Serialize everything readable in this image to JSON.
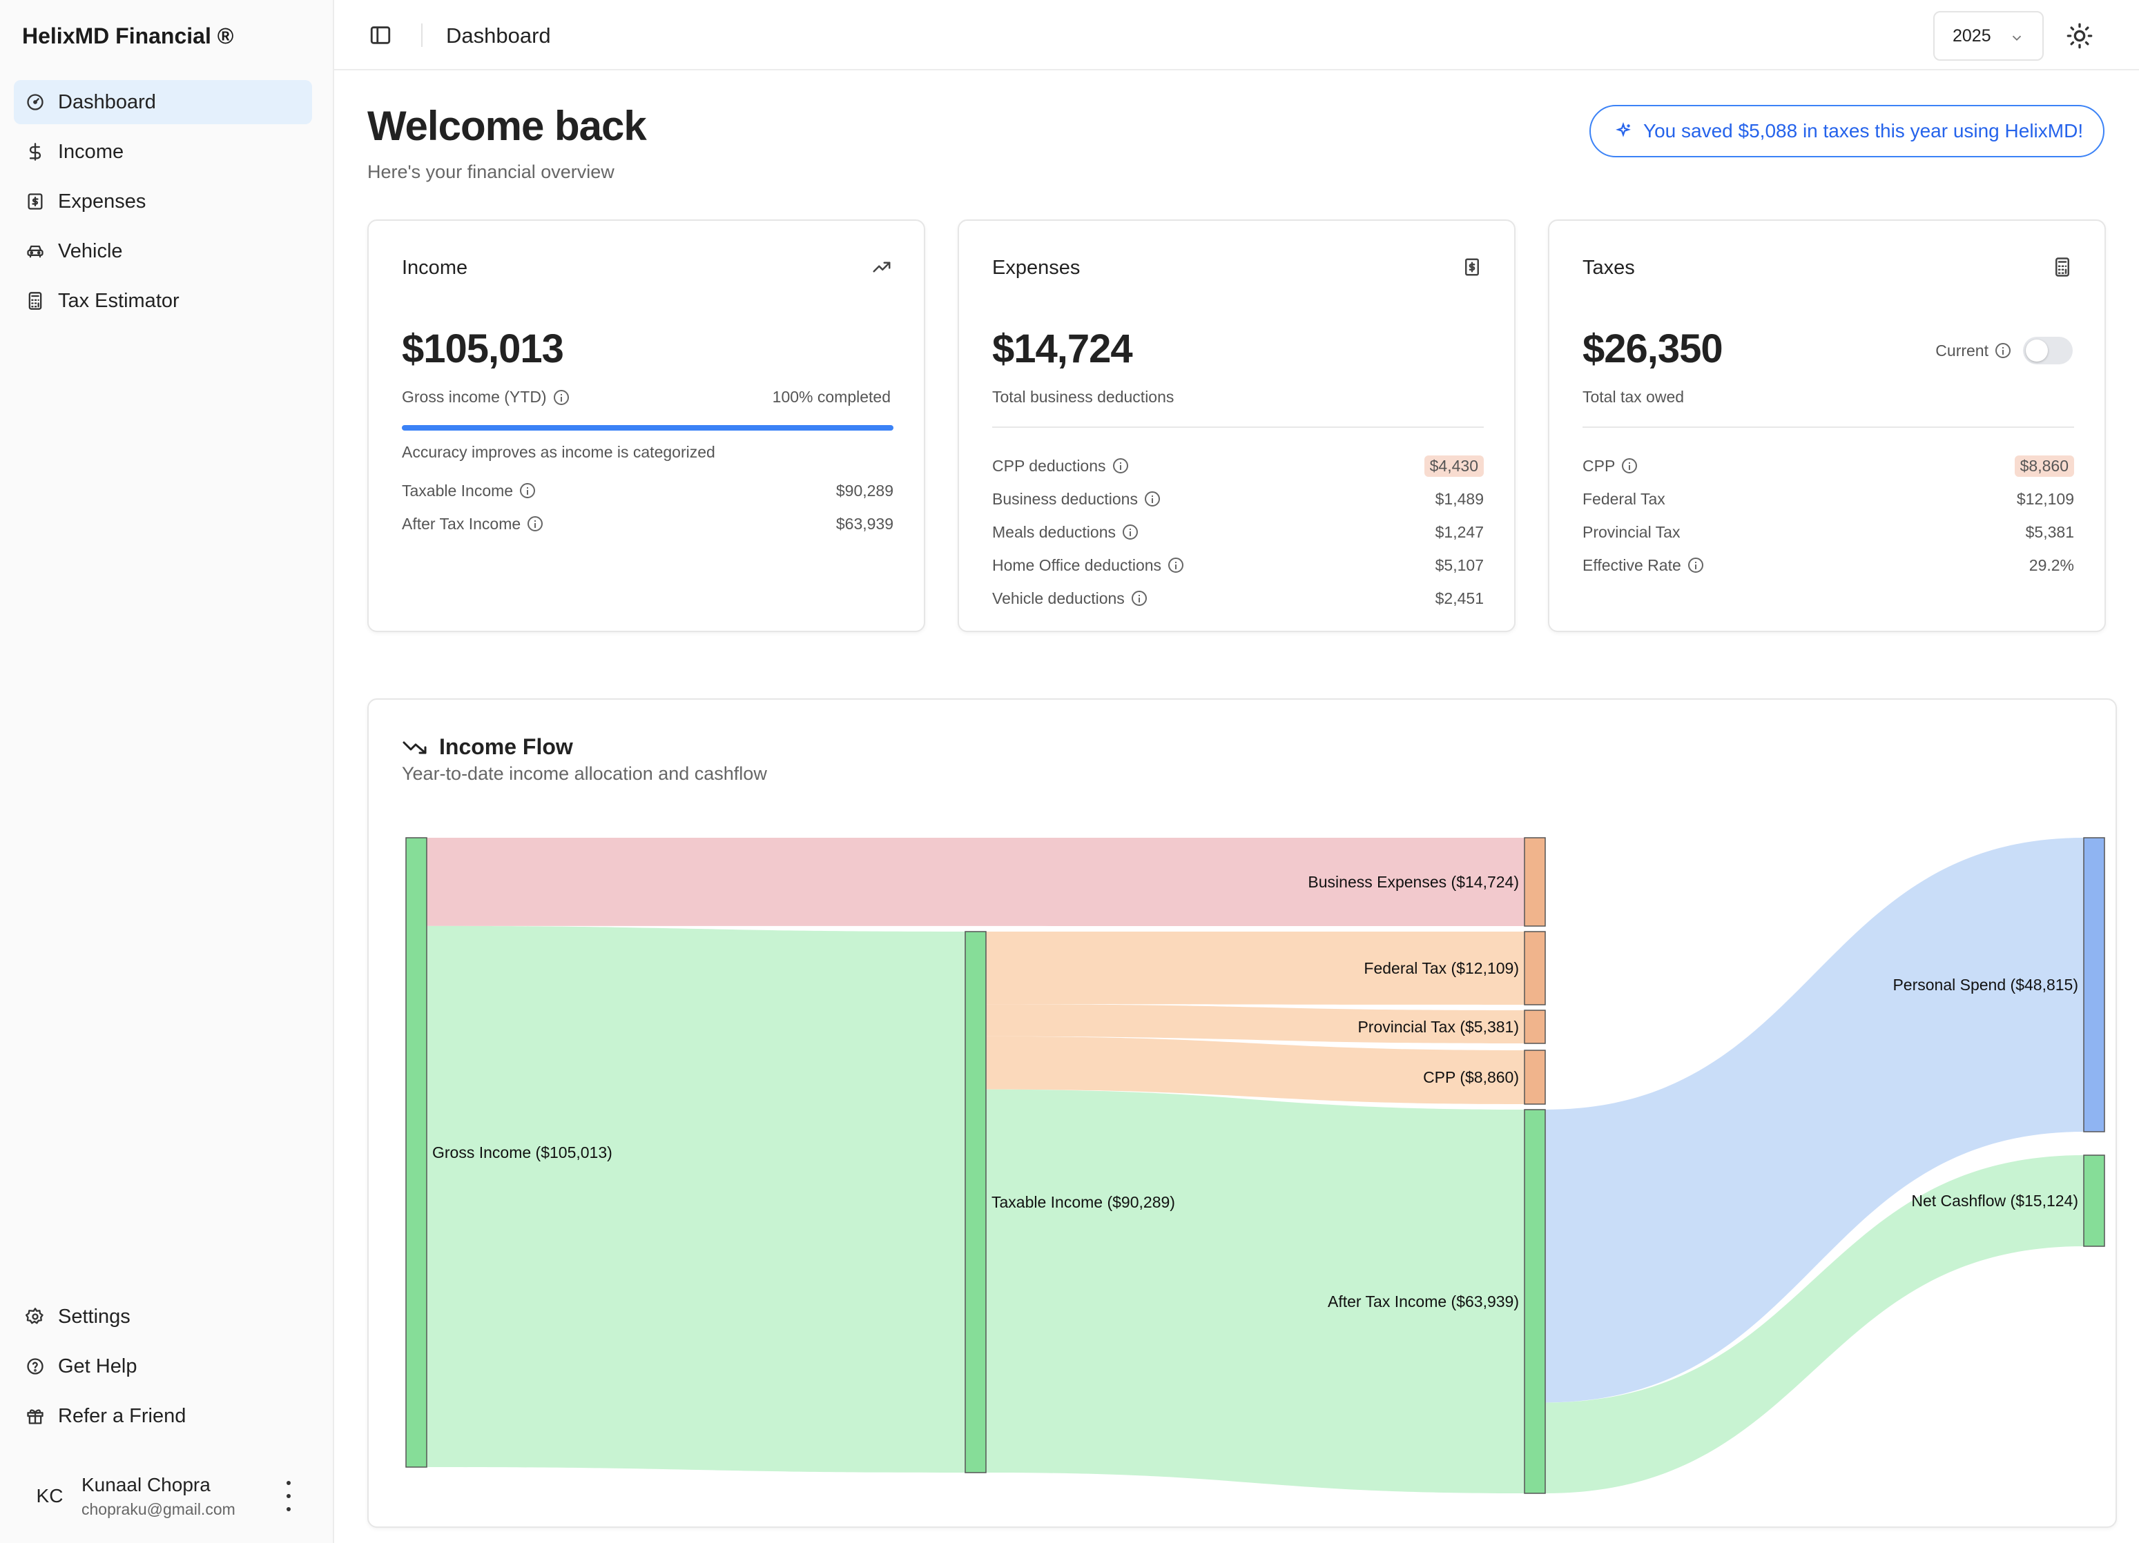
{
  "app": {
    "brand": "HelixMD Financial ®"
  },
  "sidebar": {
    "items": [
      {
        "label": "Dashboard",
        "icon": "gauge-icon",
        "active": true
      },
      {
        "label": "Income",
        "icon": "dollar-icon"
      },
      {
        "label": "Expenses",
        "icon": "receipt-icon"
      },
      {
        "label": "Vehicle",
        "icon": "car-icon"
      },
      {
        "label": "Tax Estimator",
        "icon": "calculator-icon"
      }
    ],
    "bottom_items": [
      {
        "label": "Settings",
        "icon": "gear-icon"
      },
      {
        "label": "Get Help",
        "icon": "help-circle-icon"
      },
      {
        "label": "Refer a Friend",
        "icon": "gift-icon"
      }
    ],
    "user": {
      "initials": "KC",
      "name": "Kunaal Chopra",
      "email": "chopraku@gmail.com"
    }
  },
  "header": {
    "breadcrumb": "Dashboard",
    "year": "2025"
  },
  "page": {
    "title": "Welcome back",
    "subtitle": "Here's your financial overview",
    "savings_banner": "You saved $5,088 in taxes this year using HelixMD!"
  },
  "cards": {
    "income": {
      "title": "Income",
      "amount": "$105,013",
      "caption": "Gross income (YTD)",
      "completion": "100% completed",
      "progress_fraction": 1.0,
      "note": "Accuracy improves as income is categorized",
      "rows": [
        {
          "label": "Taxable Income",
          "value": "$90,289"
        },
        {
          "label": "After Tax Income",
          "value": "$63,939"
        }
      ]
    },
    "expenses": {
      "title": "Expenses",
      "amount": "$14,724",
      "caption": "Total business deductions",
      "rows": [
        {
          "label": "CPP deductions",
          "value": "$4,430",
          "highlight": true
        },
        {
          "label": "Business deductions",
          "value": "$1,489"
        },
        {
          "label": "Meals deductions",
          "value": "$1,247"
        },
        {
          "label": "Home Office deductions",
          "value": "$5,107"
        },
        {
          "label": "Vehicle deductions",
          "value": "$2,451"
        }
      ]
    },
    "taxes": {
      "title": "Taxes",
      "amount": "$26,350",
      "caption": "Total tax owed",
      "toggle_label": "Current",
      "toggle_on": false,
      "rows": [
        {
          "label": "CPP",
          "value": "$8,860",
          "highlight": true,
          "info": true
        },
        {
          "label": "Federal Tax",
          "value": "$12,109"
        },
        {
          "label": "Provincial Tax",
          "value": "$5,381"
        },
        {
          "label": "Effective Rate",
          "value": "29.2%",
          "info": true
        }
      ]
    }
  },
  "income_flow": {
    "title": "Income Flow",
    "subtitle": "Year-to-date income allocation and cashflow",
    "nodes": [
      {
        "id": "gross",
        "label": "Gross Income ($105,013)",
        "value": 105013,
        "color": "#86dd98"
      },
      {
        "id": "taxable",
        "label": "Taxable Income ($90,289)",
        "value": 90289,
        "color": "#86dd98"
      },
      {
        "id": "business",
        "label": "Business Expenses ($14,724)",
        "value": 14724,
        "color": "#f0b48c"
      },
      {
        "id": "federal",
        "label": "Federal Tax ($12,109)",
        "value": 12109,
        "color": "#f0b48c"
      },
      {
        "id": "provincial",
        "label": "Provincial Tax ($5,381)",
        "value": 5381,
        "color": "#f0b48c"
      },
      {
        "id": "cpp",
        "label": "CPP ($8,860)",
        "value": 8860,
        "color": "#f0b48c"
      },
      {
        "id": "aftertax",
        "label": "After Tax Income ($63,939)",
        "value": 63939,
        "color": "#86dd98"
      },
      {
        "id": "personal",
        "label": "Personal Spend ($48,815)",
        "value": 48815,
        "color": "#8fb4f2"
      },
      {
        "id": "net",
        "label": "Net Cashflow ($15,124)",
        "value": 15124,
        "color": "#86dd98"
      }
    ],
    "links": [
      {
        "from": "gross",
        "to": "business",
        "value": 14724,
        "color": "#f2c9cd"
      },
      {
        "from": "gross",
        "to": "taxable",
        "value": 90289,
        "color": "#c8f3d2"
      },
      {
        "from": "taxable",
        "to": "federal",
        "value": 12109,
        "color": "#fbd9bb"
      },
      {
        "from": "taxable",
        "to": "provincial",
        "value": 5381,
        "color": "#fbd9bb"
      },
      {
        "from": "taxable",
        "to": "cpp",
        "value": 8860,
        "color": "#fbd9bb"
      },
      {
        "from": "taxable",
        "to": "aftertax",
        "value": 63939,
        "color": "#c8f3d2"
      },
      {
        "from": "aftertax",
        "to": "personal",
        "value": 48815,
        "color": "#c9ddf8"
      },
      {
        "from": "aftertax",
        "to": "net",
        "value": 15124,
        "color": "#c8f3d2"
      }
    ]
  }
}
